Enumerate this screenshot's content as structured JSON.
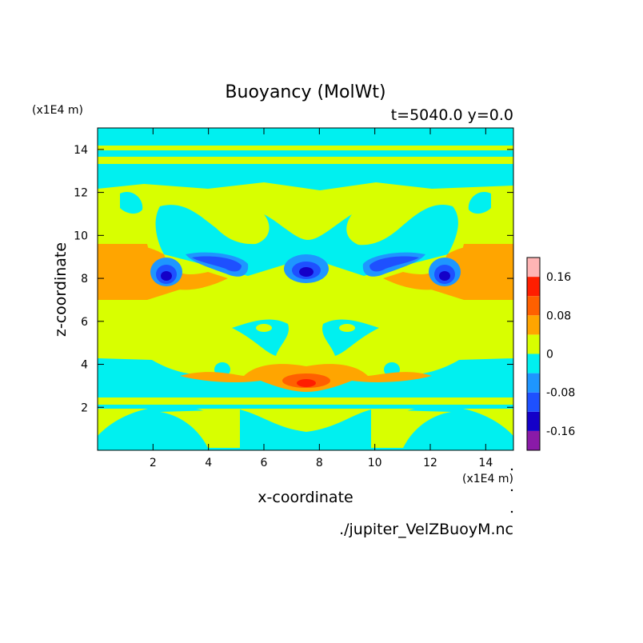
{
  "chart_data": {
    "type": "heatmap",
    "title": "Buoyancy (MolWt)",
    "subtitle": "t=5040.0 y=0.0",
    "xlabel": "x-coordinate",
    "ylabel": "z-coordinate",
    "x_unit_label": "(x1E4 m)",
    "y_unit_label": "(x1E4 m)",
    "source_label": "./jupiter_VelZBuoyM.nc",
    "xlim": [
      0,
      15
    ],
    "ylim": [
      0,
      15
    ],
    "x_ticks": [
      2,
      4,
      6,
      8,
      10,
      12,
      14
    ],
    "y_ticks": [
      2,
      4,
      6,
      8,
      10,
      12,
      14
    ],
    "colorbar": {
      "levels": [
        -0.2,
        -0.16,
        -0.12,
        -0.08,
        -0.04,
        0,
        0.04,
        0.08,
        0.12,
        0.16,
        0.2
      ],
      "colors": [
        "#8a1aa8",
        "#1400c8",
        "#1e50ff",
        "#1e96ff",
        "#00f0f0",
        "#d8ff00",
        "#ffa500",
        "#ff6000",
        "#ff1e00",
        "#ffb4b4"
      ],
      "tick_values": [
        0.16,
        0.08,
        0,
        -0.08,
        -0.16
      ],
      "tick_labels": [
        "0.16",
        "0.08",
        "0",
        "-0.08",
        "-0.16"
      ]
    },
    "features": [
      {
        "desc": "background bands",
        "z_range": [
          0,
          15
        ],
        "approx_value": 0.0
      },
      {
        "desc": "orange shear band left",
        "x": [
          0,
          2.5
        ],
        "z": [
          7,
          9.5
        ],
        "approx_value": 0.06
      },
      {
        "desc": "orange shear band right",
        "x": [
          12.5,
          15
        ],
        "z": [
          7,
          9.5
        ],
        "approx_value": 0.06
      },
      {
        "desc": "blue vortex cores",
        "x": [
          2.5,
          4.8,
          7.5,
          10.3,
          12.6
        ],
        "z": [
          8.2,
          8.6,
          8.4,
          8.6,
          8.2
        ],
        "approx_value": -0.16
      },
      {
        "desc": "warm lens center",
        "x": 7.5,
        "z": 3.2,
        "approx_value": 0.12
      }
    ]
  }
}
